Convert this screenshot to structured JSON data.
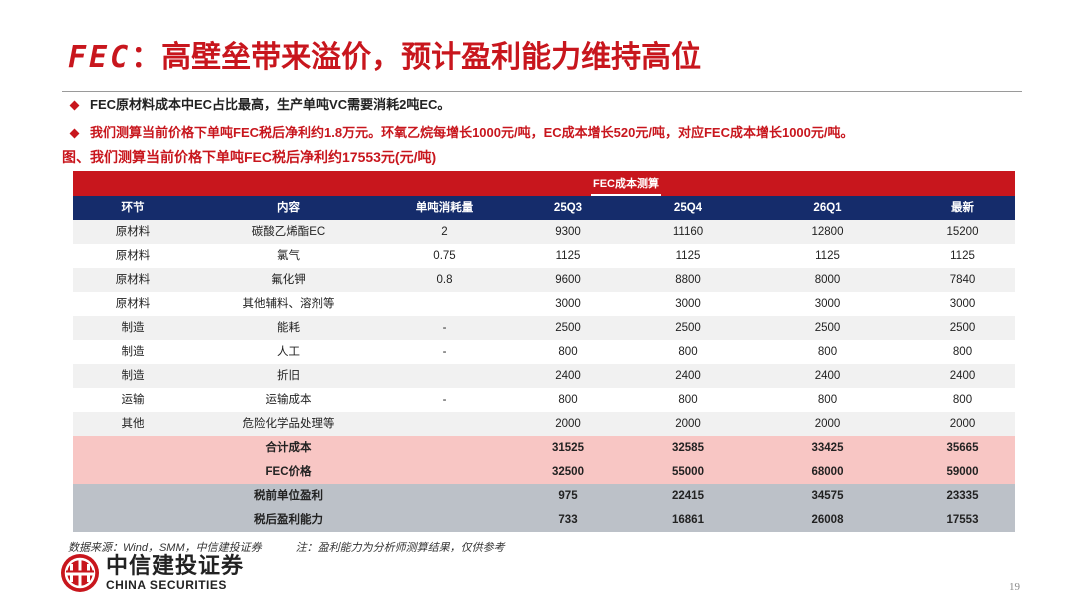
{
  "header": {
    "title_latin": "FEC",
    "title_rest": "：高壁垒带来溢价，预计盈利能力维持高位"
  },
  "bullets": [
    "FEC原材料成本中EC占比最高，生产单吨VC需要消耗2吨EC。",
    "我们测算当前价格下单吨FEC税后净利约1.8万元。环氧乙烷每增长1000元/吨，EC成本增长520元/吨，对应FEC成本增长1000元/吨。"
  ],
  "caption": "图、我们测算当前价格下单吨FEC税后净利约17553元(元/吨)",
  "table": {
    "banner": "FEC成本测算",
    "headers": [
      "环节",
      "内容",
      "单吨消耗量",
      "25Q3",
      "25Q4",
      "26Q1",
      "最新"
    ],
    "rows": [
      [
        "原材料",
        "碳酸乙烯酯EC",
        "2",
        "9300",
        "11160",
        "12800",
        "15200"
      ],
      [
        "原材料",
        "氯气",
        "0.75",
        "1125",
        "1125",
        "1125",
        "1125"
      ],
      [
        "原材料",
        "氟化钾",
        "0.8",
        "9600",
        "8800",
        "8000",
        "7840"
      ],
      [
        "原材料",
        "其他辅料、溶剂等",
        "",
        "3000",
        "3000",
        "3000",
        "3000"
      ],
      [
        "制造",
        "能耗",
        "-",
        "2500",
        "2500",
        "2500",
        "2500"
      ],
      [
        "制造",
        "人工",
        "-",
        "800",
        "800",
        "800",
        "800"
      ],
      [
        "制造",
        "折旧",
        "",
        "2400",
        "2400",
        "2400",
        "2400"
      ],
      [
        "运输",
        "运输成本",
        "-",
        "800",
        "800",
        "800",
        "800"
      ],
      [
        "其他",
        "危险化学品处理等",
        "",
        "2000",
        "2000",
        "2000",
        "2000"
      ]
    ],
    "summary": [
      {
        "label": "合计成本",
        "values": [
          "31525",
          "32585",
          "33425",
          "35665"
        ]
      },
      {
        "label": "FEC价格",
        "values": [
          "32500",
          "55000",
          "68000",
          "59000"
        ]
      },
      {
        "label": "税前单位盈利",
        "values": [
          "975",
          "22415",
          "34575",
          "23335"
        ]
      },
      {
        "label": "税后盈利能力",
        "values": [
          "733",
          "16861",
          "26008",
          "17553"
        ]
      }
    ]
  },
  "footer": {
    "source": "数据来源：Wind，SMM，中信建投证券",
    "note": "注：盈利能力为分析师测算结果，仅供参考",
    "logo_cn": "中信建投证券",
    "logo_en": "CHINA SECURITIES",
    "page": "19"
  },
  "colors": {
    "accent_red": "#c8161d",
    "header_navy": "#152c6b",
    "summary_pink": "#f8c6c4",
    "summary_grey": "#bcc1c8"
  }
}
